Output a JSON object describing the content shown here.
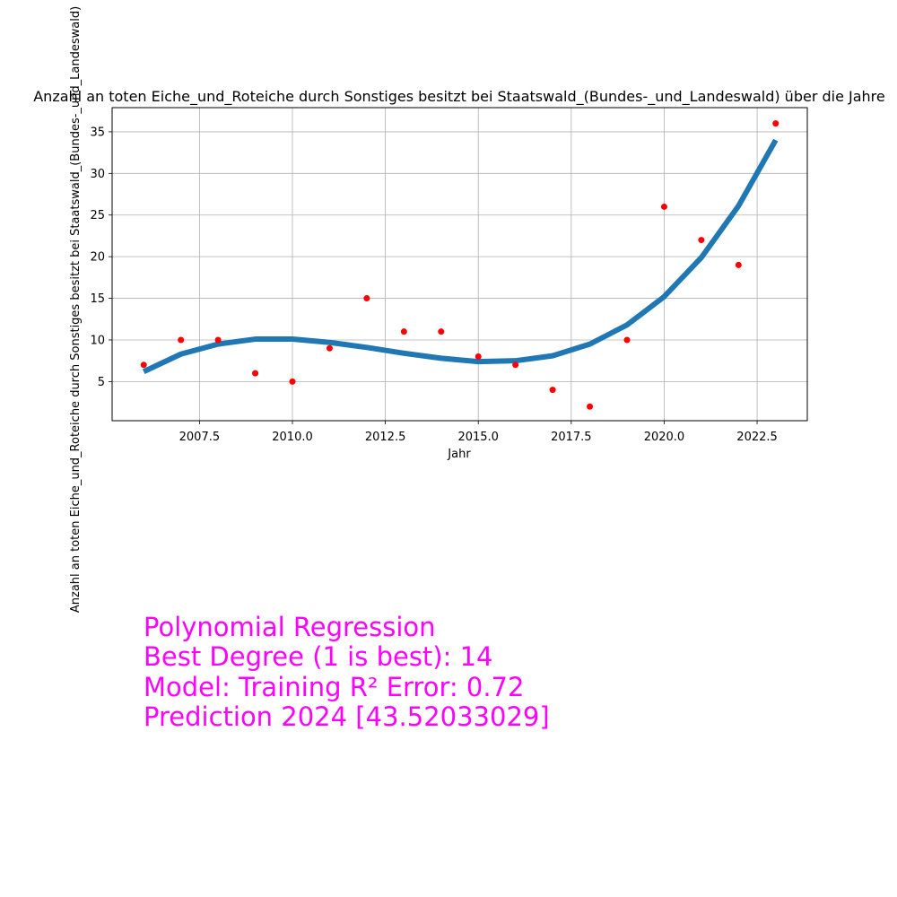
{
  "chart_data": {
    "type": "scatter",
    "title": "Anzahl an toten Eiche_und_Roteiche durch Sonstiges besitzt bei Staatswald_(Bundes-_und_Landeswald) über die Jahre",
    "xlabel": "Jahr",
    "ylabel": "Anzahl an toten Eiche_und_Roteiche durch Sonstiges besitzt bei Staatswald_(Bundes-_und_Landeswald)",
    "xlim": [
      2005.15,
      2023.85
    ],
    "ylim": [
      0.3,
      37.9
    ],
    "xticks": [
      2007.5,
      2010.0,
      2012.5,
      2015.0,
      2017.5,
      2020.0,
      2022.5
    ],
    "yticks": [
      5,
      10,
      15,
      20,
      25,
      30,
      35
    ],
    "grid": true,
    "series": [
      {
        "kind": "points",
        "color": "#ff0000",
        "x": [
          2006,
          2007,
          2008,
          2009,
          2010,
          2011,
          2012,
          2013,
          2014,
          2015,
          2016,
          2017,
          2018,
          2019,
          2020,
          2021,
          2022,
          2023
        ],
        "y": [
          7,
          10,
          10,
          6,
          5,
          9,
          15,
          11,
          11,
          8,
          7,
          4,
          2,
          10,
          26,
          22,
          19,
          36
        ]
      },
      {
        "kind": "fit-line",
        "color": "#1f77b4",
        "x": [
          2006,
          2007,
          2008,
          2009,
          2010,
          2011,
          2012,
          2013,
          2014,
          2015,
          2016,
          2017,
          2018,
          2019,
          2020,
          2021,
          2022,
          2023
        ],
        "y": [
          6.2,
          8.3,
          9.5,
          10.1,
          10.1,
          9.7,
          9.1,
          8.4,
          7.8,
          7.4,
          7.5,
          8.1,
          9.5,
          11.8,
          15.2,
          19.9,
          26.1,
          34.0
        ]
      }
    ]
  },
  "annotation": {
    "color": "#ff00ff",
    "lines": [
      "Polynomial Regression",
      "Best Degree (1 is best): 14",
      "Model: Training R² Error: 0.72",
      "Prediction 2024 [43.52033029]"
    ]
  }
}
